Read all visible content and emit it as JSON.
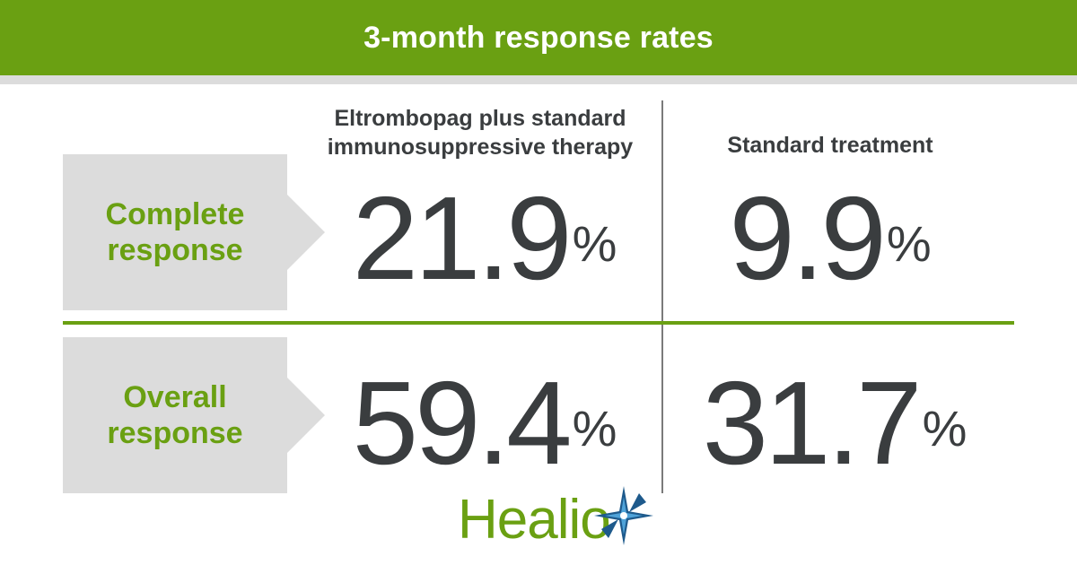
{
  "header": {
    "title": "3-month response rates"
  },
  "colors": {
    "brand_green": "#6aa012",
    "panel_gray": "#dcdcdc",
    "text_dark": "#3a3d3f",
    "logo_blue": "#1e5a8c",
    "logo_light_blue": "#4fa3d9"
  },
  "chart_data": {
    "type": "table",
    "columns": [
      "Eltrombopag plus standard immunosuppressive therapy",
      "Standard treatment"
    ],
    "rows": [
      {
        "label": "Complete response",
        "values": [
          21.9,
          9.9
        ],
        "display": [
          "21.9",
          "9.9"
        ]
      },
      {
        "label": "Overall response",
        "values": [
          59.4,
          31.7
        ],
        "display": [
          "59.4",
          "31.7"
        ]
      }
    ],
    "unit": "%"
  },
  "labels": {
    "col1_line1": "Eltrombopag plus standard",
    "col1_line2": "immunosuppressive therapy",
    "col2": "Standard treatment",
    "row1_line1": "Complete",
    "row1_line2": "response",
    "row2_line1": "Overall",
    "row2_line2": "response"
  },
  "logo": {
    "text": "Healio",
    "icon": "star-burst-icon"
  }
}
